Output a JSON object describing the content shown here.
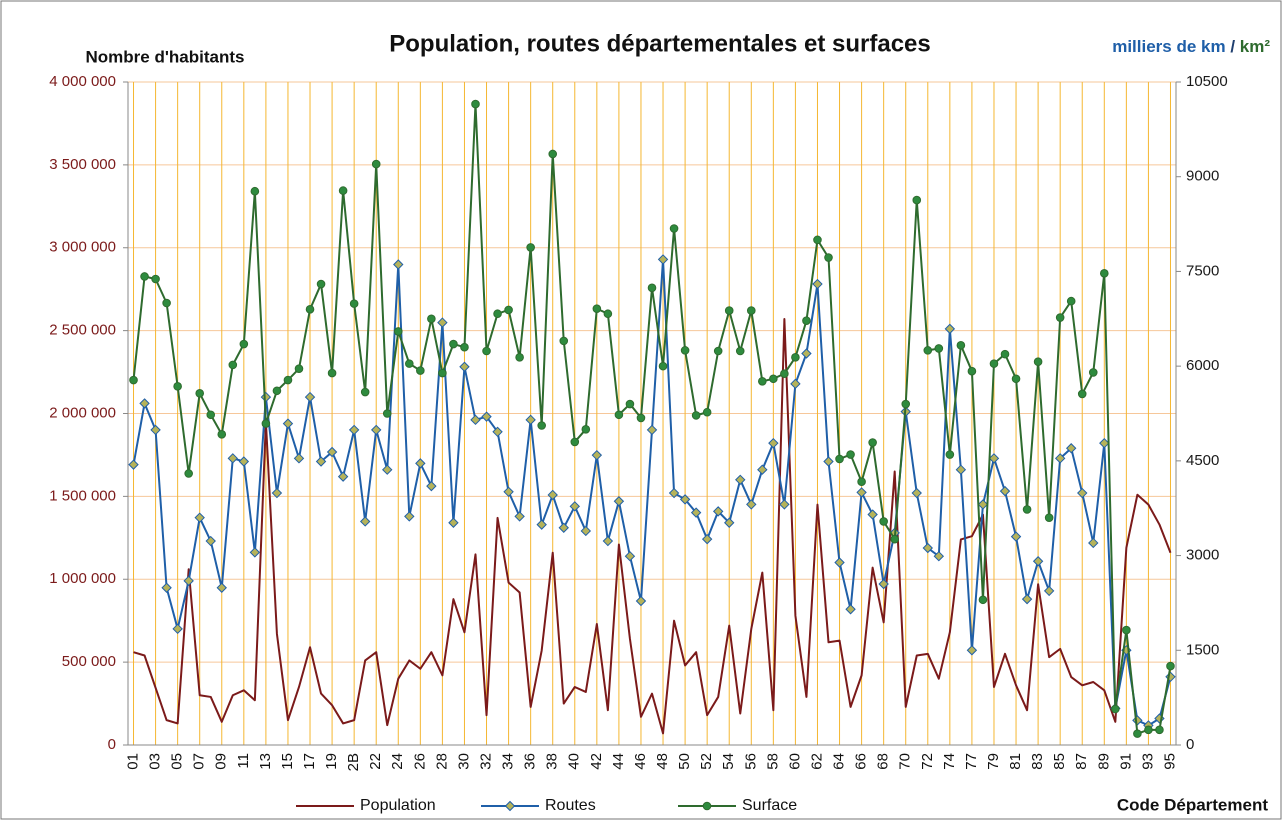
{
  "chart_data": {
    "type": "line",
    "title": "Population, routes départementales et surfaces",
    "y_label": "Nombre d'habitants",
    "y2_label_parts": [
      {
        "text": "milliers de km",
        "color": "#1f5fa8"
      },
      {
        "text": " / ",
        "color": "#1f3f6f"
      },
      {
        "text": "km²",
        "color": "#2e6b2e"
      }
    ],
    "x_label": "Code Département",
    "categories": [
      "01",
      null,
      "03",
      null,
      "05",
      null,
      "07",
      null,
      "09",
      null,
      "11",
      null,
      "13",
      null,
      "15",
      null,
      "17",
      null,
      "19",
      null,
      "2B",
      null,
      "22",
      null,
      "24",
      null,
      "26",
      null,
      "28",
      null,
      "30",
      null,
      "32",
      null,
      "34",
      null,
      "36",
      null,
      "38",
      null,
      "40",
      null,
      "42",
      null,
      "44",
      null,
      "46",
      null,
      "48",
      null,
      "50",
      null,
      "52",
      null,
      "54",
      null,
      "56",
      null,
      "58",
      null,
      "60",
      null,
      "62",
      null,
      "64",
      null,
      "66",
      null,
      "68",
      null,
      "70",
      null,
      "72",
      null,
      "74",
      null,
      "77",
      null,
      "79",
      null,
      "81",
      null,
      "83",
      null,
      "85",
      null,
      "87",
      null,
      "89",
      null,
      "91",
      null,
      "93",
      null,
      "95"
    ],
    "ylim": [
      0,
      4000000
    ],
    "yticks": [
      0,
      {
        "value": 500000,
        "label": "500 000"
      },
      {
        "value": 1000000,
        "label": "1 000 000"
      },
      {
        "value": 1500000,
        "label": "1 500 000"
      },
      {
        "value": 2000000,
        "label": "2 000 000"
      },
      {
        "value": 2500000,
        "label": "2 500 000"
      },
      {
        "value": 3000000,
        "label": "3 000 000"
      },
      {
        "value": 3500000,
        "label": "3 500 000"
      },
      {
        "value": 4000000,
        "label": "4 000 000"
      }
    ],
    "y2lim": [
      0,
      10500
    ],
    "y2ticks": [
      0,
      1500,
      3000,
      4500,
      6000,
      7500,
      9000,
      10500
    ],
    "grid": true,
    "legend": "bottom",
    "series": [
      {
        "name": "Population",
        "color": "#7b1a1a",
        "marker": "none",
        "values": [
          560000,
          540000,
          345000,
          150000,
          130000,
          1060000,
          300000,
          290000,
          140000,
          300000,
          330000,
          270000,
          1950000,
          670000,
          150000,
          350000,
          590000,
          310000,
          240000,
          130000,
          150000,
          510000,
          560000,
          120000,
          400000,
          510000,
          460000,
          560000,
          420000,
          880000,
          680000,
          1150000,
          180000,
          1370000,
          980000,
          920000,
          230000,
          570000,
          1160000,
          250000,
          350000,
          320000,
          730000,
          210000,
          1210000,
          640000,
          170000,
          310000,
          70000,
          750000,
          480000,
          560000,
          180000,
          290000,
          720000,
          190000,
          700000,
          1040000,
          210000,
          2570000,
          780000,
          290000,
          1450000,
          620000,
          630000,
          230000,
          420000,
          1070000,
          740000,
          1650000,
          230000,
          540000,
          550000,
          400000,
          680000,
          1240000,
          1260000,
          1390000,
          350000,
          550000,
          360000,
          210000,
          970000,
          530000,
          580000,
          410000,
          360000,
          380000,
          330000,
          140000,
          1190000,
          1510000,
          1450000,
          1330000,
          1160000
        ]
      },
      {
        "name": "Routes",
        "color": "#1f5fa8",
        "marker": "diamond",
        "marker_color": "#b5b35a",
        "axis": "y2",
        "values": [
          4440,
          5410,
          4990,
          2490,
          1840,
          2600,
          3600,
          3230,
          2490,
          4540,
          4490,
          3050,
          5510,
          3990,
          5090,
          4540,
          5510,
          4490,
          4640,
          4250,
          4990,
          3540,
          4990,
          4360,
          7610,
          3620,
          4460,
          4100,
          6690,
          3520,
          5990,
          5150,
          5200,
          4960,
          4010,
          3620,
          5150,
          3490,
          3960,
          3440,
          3780,
          3390,
          4590,
          3230,
          3860,
          2990,
          2280,
          4990,
          7690,
          3990,
          3890,
          3680,
          3260,
          3700,
          3520,
          4200,
          3810,
          4360,
          4780,
          3810,
          5720,
          6200,
          7300,
          4490,
          2890,
          2150,
          4000,
          3650,
          2550,
          3360,
          5280,
          3990,
          3120,
          2990,
          6590,
          4360,
          1500,
          3810,
          4540,
          4020,
          3300,
          2310,
          2910,
          2440,
          4540,
          4700,
          3990,
          3200,
          4780,
          580,
          1500,
          390,
          310,
          420,
          1080
        ]
      },
      {
        "name": "Surface",
        "color": "#2e6b2e",
        "marker": "circle",
        "marker_color": "#2e8b3e",
        "axis": "y2",
        "values": [
          5780,
          7420,
          7380,
          7000,
          5680,
          4300,
          5570,
          5230,
          4920,
          6020,
          6350,
          8770,
          5090,
          5610,
          5780,
          5960,
          6900,
          7300,
          5890,
          8780,
          6990,
          5590,
          9200,
          5250,
          6550,
          6040,
          5930,
          6750,
          5890,
          6350,
          6300,
          10150,
          6240,
          6830,
          6890,
          6140,
          7880,
          5060,
          9360,
          6400,
          4800,
          5000,
          6910,
          6830,
          5230,
          5400,
          5180,
          7240,
          6000,
          8180,
          6250,
          5220,
          5270,
          6240,
          6880,
          6240,
          6880,
          5760,
          5800,
          5880,
          6140,
          6720,
          8000,
          7720,
          4530,
          4600,
          4170,
          4790,
          3540,
          3260,
          5400,
          8630,
          6250,
          6280,
          4600,
          6330,
          5920,
          2300,
          6040,
          6190,
          5800,
          3730,
          6070,
          3600,
          6770,
          7030,
          5560,
          5900,
          7470,
          570,
          1820,
          180,
          240,
          240,
          1250
        ]
      }
    ]
  }
}
